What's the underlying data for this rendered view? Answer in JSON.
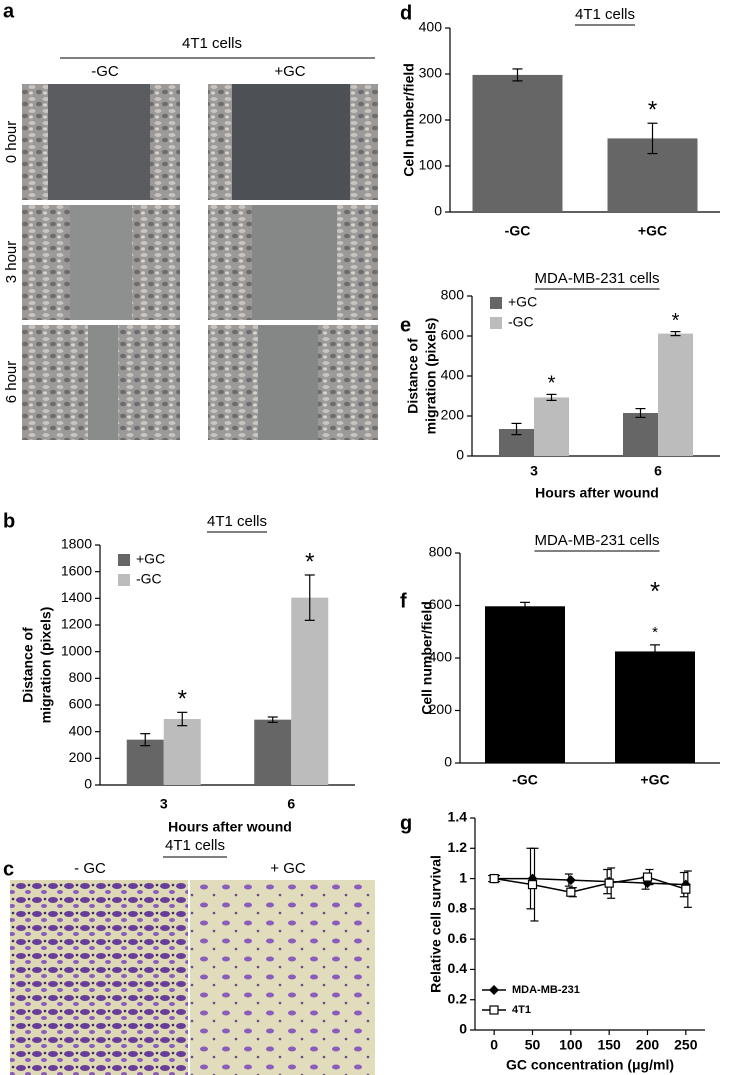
{
  "figure": {
    "a": {
      "panel": "a",
      "title": "4T1 cells",
      "columns": [
        "-GC",
        "+GC"
      ],
      "rows": [
        "0 hour",
        "3 hour",
        "6 hour"
      ]
    },
    "c": {
      "panel": "c",
      "title": "4T1 cells",
      "columns": [
        "- GC",
        "+ GC"
      ]
    }
  },
  "chart_data": [
    {
      "type": "bar",
      "panel": "b",
      "title": "4T1 cells",
      "ylabel": [
        "Distance of",
        "migration (pixels)"
      ],
      "xlabel": "Hours after wound",
      "categories": [
        "3",
        "6"
      ],
      "series": [
        {
          "name": "+GC",
          "color": "#666666",
          "values": [
            340,
            490
          ],
          "errors": [
            45,
            20
          ]
        },
        {
          "name": "-GC",
          "color": "#bcbcbc",
          "values": [
            495,
            1405
          ],
          "errors": [
            50,
            170
          ]
        }
      ],
      "annotations": [
        "*",
        "*"
      ],
      "ylim": [
        0,
        1800
      ],
      "yticks": [
        0,
        200,
        400,
        600,
        800,
        1000,
        1200,
        1400,
        1600,
        1800
      ],
      "legend": "upper left"
    },
    {
      "type": "bar",
      "panel": "d",
      "title": "4T1 cells",
      "ylabel": [
        "Cell number/field"
      ],
      "categories": [
        "-GC",
        "+GC"
      ],
      "values": [
        298,
        160
      ],
      "errors": [
        13,
        33
      ],
      "color": "#666666",
      "annotations": [
        "*"
      ],
      "ylim": [
        0,
        400
      ],
      "yticks": [
        0,
        100,
        200,
        300,
        400
      ]
    },
    {
      "type": "bar",
      "panel": "e",
      "title": "MDA-MB-231 cells",
      "ylabel": [
        "Distance of",
        "migration (pixels)"
      ],
      "xlabel": "Hours after wound",
      "categories": [
        "3",
        "6"
      ],
      "series": [
        {
          "name": "+GC",
          "color": "#666666",
          "values": [
            135,
            215
          ],
          "errors": [
            28,
            22
          ]
        },
        {
          "name": "-GC",
          "color": "#bcbcbc",
          "values": [
            293,
            612
          ],
          "errors": [
            15,
            10
          ]
        }
      ],
      "annotations": [
        "*",
        "*"
      ],
      "ylim": [
        0,
        800
      ],
      "yticks": [
        0,
        200,
        400,
        600,
        800
      ],
      "legend": "upper left"
    },
    {
      "type": "bar",
      "panel": "f",
      "title": "MDA-MB-231 cells",
      "ylabel": [
        "Cell number/field"
      ],
      "categories": [
        "-GC",
        "+GC"
      ],
      "values": [
        597,
        425
      ],
      "errors": [
        15,
        25
      ],
      "color": "#000000",
      "annotations": [
        "*",
        "*"
      ],
      "ylim": [
        0,
        800
      ],
      "yticks": [
        0,
        200,
        400,
        600,
        800
      ]
    },
    {
      "type": "line",
      "panel": "g",
      "ylabel": [
        "Relative cell survival"
      ],
      "xlabel": "GC concentration (μg/ml)",
      "x": [
        0,
        50,
        100,
        150,
        200,
        250
      ],
      "series": [
        {
          "name": "MDA-MB-231",
          "color": "#000000",
          "marker": "diamond",
          "values": [
            1.0,
            1.0,
            0.99,
            0.98,
            0.97,
            0.96
          ],
          "errors": [
            0.02,
            0.2,
            0.04,
            0.08,
            0.04,
            0.08
          ]
        },
        {
          "name": "4T1",
          "color": "#000000",
          "marker": "square",
          "values": [
            1.0,
            0.96,
            0.91,
            0.97,
            1.01,
            0.93
          ],
          "errors": [
            0.02,
            0.24,
            0.03,
            0.1,
            0.05,
            0.12
          ]
        }
      ],
      "xlim": [
        -25,
        275
      ],
      "xticks": [
        0,
        50,
        100,
        150,
        200,
        250
      ],
      "ylim": [
        0,
        1.4
      ],
      "yticks": [
        0,
        0.2,
        0.4,
        0.6,
        0.8,
        1,
        1.2,
        1.4
      ],
      "legend": "lower left"
    }
  ]
}
